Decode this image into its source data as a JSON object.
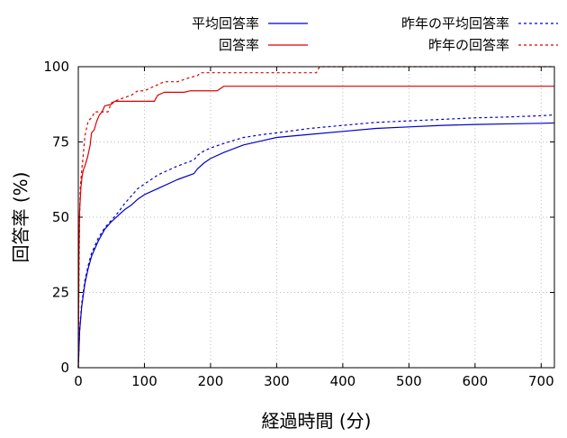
{
  "chart_data": {
    "type": "line",
    "title": "",
    "xlabel": "経過時間 (分)",
    "ylabel": "回答率 (%)",
    "xlim": [
      0,
      720
    ],
    "ylim": [
      0,
      100
    ],
    "xticks": [
      0,
      100,
      200,
      300,
      400,
      500,
      600,
      700
    ],
    "yticks": [
      0,
      25,
      50,
      75,
      100
    ],
    "grid": true,
    "legend_position": "top",
    "series": [
      {
        "name": "平均回答率",
        "color": "#0000cc",
        "dash": "solid",
        "x": [
          0,
          2,
          5,
          10,
          15,
          20,
          30,
          40,
          50,
          60,
          70,
          80,
          90,
          100,
          120,
          150,
          175,
          180,
          190,
          200,
          220,
          250,
          280,
          300,
          350,
          400,
          450,
          500,
          550,
          600,
          650,
          700,
          720
        ],
        "y": [
          0,
          12,
          20,
          28,
          33,
          37,
          42,
          46,
          48.5,
          50.5,
          52.5,
          54,
          56,
          57.5,
          59.5,
          62.5,
          64.5,
          66,
          68,
          69.5,
          71.5,
          74,
          75.5,
          76.5,
          77.5,
          78.5,
          79.5,
          80,
          80.5,
          80.8,
          81,
          81.2,
          81.3
        ]
      },
      {
        "name": "回答率",
        "color": "#dd0000",
        "dash": "solid",
        "x": [
          0,
          1,
          2,
          4,
          6,
          8,
          10,
          14,
          18,
          20,
          24,
          28,
          32,
          36,
          40,
          50,
          55,
          60,
          100,
          115,
          120,
          130,
          150,
          160,
          170,
          210,
          220,
          720
        ],
        "y": [
          0,
          38,
          52,
          60,
          64,
          66,
          67,
          70,
          74,
          78,
          79,
          82,
          84,
          85,
          87,
          87.5,
          88.5,
          88.5,
          88.5,
          88.5,
          90.5,
          91.5,
          91.5,
          91.5,
          92,
          92,
          93.5,
          93.5
        ]
      },
      {
        "name": "昨年の平均回答率",
        "color": "#0000cc",
        "dash": "dashed",
        "x": [
          0,
          2,
          5,
          10,
          15,
          20,
          30,
          40,
          50,
          60,
          70,
          80,
          90,
          100,
          120,
          150,
          175,
          180,
          190,
          200,
          220,
          250,
          280,
          300,
          350,
          400,
          450,
          500,
          550,
          600,
          650,
          700,
          720
        ],
        "y": [
          0,
          12.5,
          21,
          29,
          34,
          38,
          43,
          46.5,
          49,
          51.5,
          54.5,
          57,
          59.5,
          61,
          64,
          67,
          69,
          70.5,
          72,
          73,
          74.5,
          76.5,
          77.5,
          78,
          79.5,
          80.5,
          81.5,
          82,
          82.5,
          83,
          83.3,
          83.7,
          84
        ]
      },
      {
        "name": "昨年の回答率",
        "color": "#dd0000",
        "dash": "dashed",
        "x": [
          0,
          1,
          2,
          3,
          5,
          8,
          10,
          15,
          20,
          25,
          30,
          35,
          40,
          45,
          50,
          60,
          80,
          90,
          100,
          110,
          120,
          130,
          150,
          170,
          180,
          185,
          190,
          360,
          365,
          720
        ],
        "y": [
          0,
          30,
          50,
          60,
          65,
          72,
          77,
          82,
          83,
          85,
          85,
          85,
          85,
          85,
          88,
          89,
          90.5,
          92,
          92,
          93,
          94,
          95,
          95,
          96.5,
          97,
          98,
          98,
          98,
          100,
          100
        ]
      }
    ]
  }
}
